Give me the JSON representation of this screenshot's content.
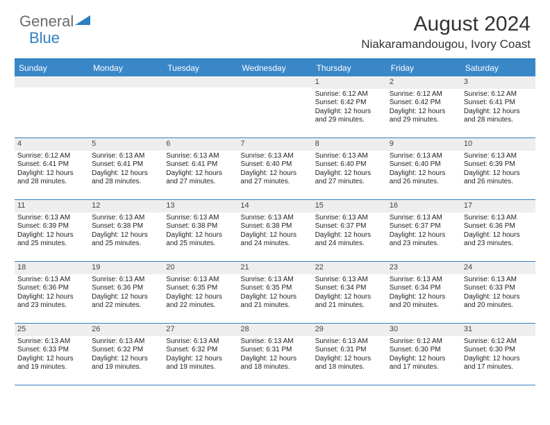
{
  "brand": {
    "general": "General",
    "blue": "Blue"
  },
  "title": "August 2024",
  "location": "Niakaramandougou, Ivory Coast",
  "colors": {
    "header_bar": "#3a87c8",
    "rule": "#2f7fc2",
    "daynum_bg": "#eeeeee",
    "logo_gray": "#6b6b6b",
    "logo_blue": "#2f7fc2"
  },
  "weekdays": [
    "Sunday",
    "Monday",
    "Tuesday",
    "Wednesday",
    "Thursday",
    "Friday",
    "Saturday"
  ],
  "weeks": [
    [
      {
        "n": "",
        "sr": "",
        "ss": "",
        "dl": ""
      },
      {
        "n": "",
        "sr": "",
        "ss": "",
        "dl": ""
      },
      {
        "n": "",
        "sr": "",
        "ss": "",
        "dl": ""
      },
      {
        "n": "",
        "sr": "",
        "ss": "",
        "dl": ""
      },
      {
        "n": "1",
        "sr": "Sunrise: 6:12 AM",
        "ss": "Sunset: 6:42 PM",
        "dl": "Daylight: 12 hours and 29 minutes."
      },
      {
        "n": "2",
        "sr": "Sunrise: 6:12 AM",
        "ss": "Sunset: 6:42 PM",
        "dl": "Daylight: 12 hours and 29 minutes."
      },
      {
        "n": "3",
        "sr": "Sunrise: 6:12 AM",
        "ss": "Sunset: 6:41 PM",
        "dl": "Daylight: 12 hours and 28 minutes."
      }
    ],
    [
      {
        "n": "4",
        "sr": "Sunrise: 6:12 AM",
        "ss": "Sunset: 6:41 PM",
        "dl": "Daylight: 12 hours and 28 minutes."
      },
      {
        "n": "5",
        "sr": "Sunrise: 6:13 AM",
        "ss": "Sunset: 6:41 PM",
        "dl": "Daylight: 12 hours and 28 minutes."
      },
      {
        "n": "6",
        "sr": "Sunrise: 6:13 AM",
        "ss": "Sunset: 6:41 PM",
        "dl": "Daylight: 12 hours and 27 minutes."
      },
      {
        "n": "7",
        "sr": "Sunrise: 6:13 AM",
        "ss": "Sunset: 6:40 PM",
        "dl": "Daylight: 12 hours and 27 minutes."
      },
      {
        "n": "8",
        "sr": "Sunrise: 6:13 AM",
        "ss": "Sunset: 6:40 PM",
        "dl": "Daylight: 12 hours and 27 minutes."
      },
      {
        "n": "9",
        "sr": "Sunrise: 6:13 AM",
        "ss": "Sunset: 6:40 PM",
        "dl": "Daylight: 12 hours and 26 minutes."
      },
      {
        "n": "10",
        "sr": "Sunrise: 6:13 AM",
        "ss": "Sunset: 6:39 PM",
        "dl": "Daylight: 12 hours and 26 minutes."
      }
    ],
    [
      {
        "n": "11",
        "sr": "Sunrise: 6:13 AM",
        "ss": "Sunset: 6:39 PM",
        "dl": "Daylight: 12 hours and 25 minutes."
      },
      {
        "n": "12",
        "sr": "Sunrise: 6:13 AM",
        "ss": "Sunset: 6:38 PM",
        "dl": "Daylight: 12 hours and 25 minutes."
      },
      {
        "n": "13",
        "sr": "Sunrise: 6:13 AM",
        "ss": "Sunset: 6:38 PM",
        "dl": "Daylight: 12 hours and 25 minutes."
      },
      {
        "n": "14",
        "sr": "Sunrise: 6:13 AM",
        "ss": "Sunset: 6:38 PM",
        "dl": "Daylight: 12 hours and 24 minutes."
      },
      {
        "n": "15",
        "sr": "Sunrise: 6:13 AM",
        "ss": "Sunset: 6:37 PM",
        "dl": "Daylight: 12 hours and 24 minutes."
      },
      {
        "n": "16",
        "sr": "Sunrise: 6:13 AM",
        "ss": "Sunset: 6:37 PM",
        "dl": "Daylight: 12 hours and 23 minutes."
      },
      {
        "n": "17",
        "sr": "Sunrise: 6:13 AM",
        "ss": "Sunset: 6:36 PM",
        "dl": "Daylight: 12 hours and 23 minutes."
      }
    ],
    [
      {
        "n": "18",
        "sr": "Sunrise: 6:13 AM",
        "ss": "Sunset: 6:36 PM",
        "dl": "Daylight: 12 hours and 23 minutes."
      },
      {
        "n": "19",
        "sr": "Sunrise: 6:13 AM",
        "ss": "Sunset: 6:36 PM",
        "dl": "Daylight: 12 hours and 22 minutes."
      },
      {
        "n": "20",
        "sr": "Sunrise: 6:13 AM",
        "ss": "Sunset: 6:35 PM",
        "dl": "Daylight: 12 hours and 22 minutes."
      },
      {
        "n": "21",
        "sr": "Sunrise: 6:13 AM",
        "ss": "Sunset: 6:35 PM",
        "dl": "Daylight: 12 hours and 21 minutes."
      },
      {
        "n": "22",
        "sr": "Sunrise: 6:13 AM",
        "ss": "Sunset: 6:34 PM",
        "dl": "Daylight: 12 hours and 21 minutes."
      },
      {
        "n": "23",
        "sr": "Sunrise: 6:13 AM",
        "ss": "Sunset: 6:34 PM",
        "dl": "Daylight: 12 hours and 20 minutes."
      },
      {
        "n": "24",
        "sr": "Sunrise: 6:13 AM",
        "ss": "Sunset: 6:33 PM",
        "dl": "Daylight: 12 hours and 20 minutes."
      }
    ],
    [
      {
        "n": "25",
        "sr": "Sunrise: 6:13 AM",
        "ss": "Sunset: 6:33 PM",
        "dl": "Daylight: 12 hours and 19 minutes."
      },
      {
        "n": "26",
        "sr": "Sunrise: 6:13 AM",
        "ss": "Sunset: 6:32 PM",
        "dl": "Daylight: 12 hours and 19 minutes."
      },
      {
        "n": "27",
        "sr": "Sunrise: 6:13 AM",
        "ss": "Sunset: 6:32 PM",
        "dl": "Daylight: 12 hours and 19 minutes."
      },
      {
        "n": "28",
        "sr": "Sunrise: 6:13 AM",
        "ss": "Sunset: 6:31 PM",
        "dl": "Daylight: 12 hours and 18 minutes."
      },
      {
        "n": "29",
        "sr": "Sunrise: 6:13 AM",
        "ss": "Sunset: 6:31 PM",
        "dl": "Daylight: 12 hours and 18 minutes."
      },
      {
        "n": "30",
        "sr": "Sunrise: 6:12 AM",
        "ss": "Sunset: 6:30 PM",
        "dl": "Daylight: 12 hours and 17 minutes."
      },
      {
        "n": "31",
        "sr": "Sunrise: 6:12 AM",
        "ss": "Sunset: 6:30 PM",
        "dl": "Daylight: 12 hours and 17 minutes."
      }
    ]
  ]
}
